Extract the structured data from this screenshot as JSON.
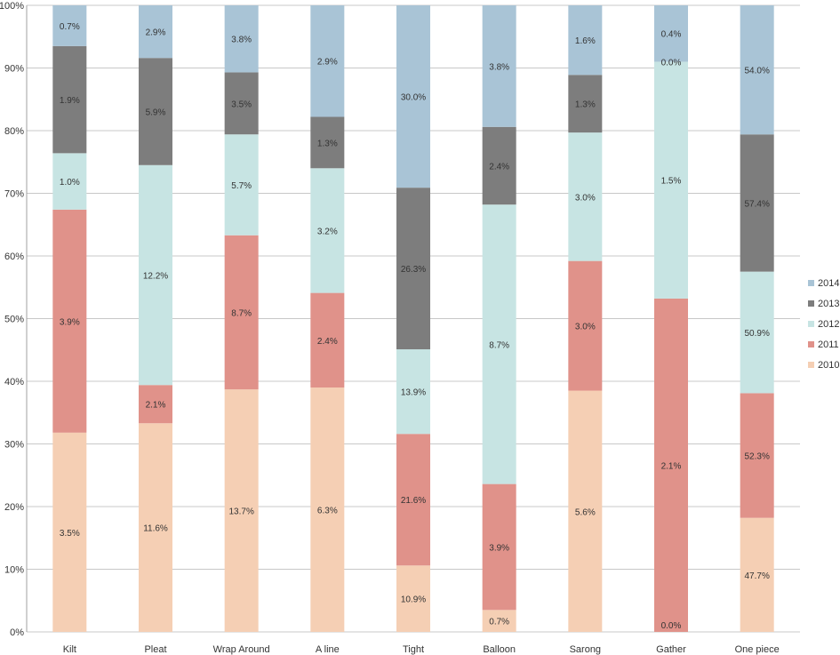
{
  "chart_data": {
    "type": "bar",
    "stacked": true,
    "percent_stacked": true,
    "categories": [
      "Kilt",
      "Pleat",
      "Wrap Around",
      "A line",
      "Tight",
      "Balloon",
      "Sarong",
      "Gather",
      "One piece"
    ],
    "ylim": [
      0,
      100
    ],
    "yticks": [
      "0%",
      "10%",
      "20%",
      "30%",
      "40%",
      "50%",
      "60%",
      "70%",
      "80%",
      "90%",
      "100%"
    ],
    "grid": true,
    "legend_position": "right",
    "series": [
      {
        "name": "2010",
        "color": "#f5cfb4",
        "share": [
          31.8,
          33.3,
          38.7,
          39.0,
          10.6,
          3.5,
          38.5,
          0.0,
          18.2
        ],
        "labels": [
          "3.5%",
          "11.6%",
          "13.7%",
          "6.3%",
          "10.9%",
          "0.7%",
          "5.6%",
          "0.0%",
          "47.7%"
        ]
      },
      {
        "name": "2011",
        "color": "#e0928a",
        "share": [
          35.6,
          6.1,
          24.6,
          15.1,
          21.0,
          20.1,
          20.7,
          53.2,
          19.9
        ],
        "labels": [
          "3.9%",
          "2.1%",
          "8.7%",
          "2.4%",
          "21.6%",
          "3.9%",
          "3.0%",
          "2.1%",
          "52.3%"
        ]
      },
      {
        "name": "2012",
        "color": "#c7e4e3",
        "share": [
          9.0,
          35.1,
          16.1,
          19.9,
          13.5,
          44.6,
          20.5,
          37.8,
          19.4
        ],
        "labels": [
          "1.0%",
          "12.2%",
          "5.7%",
          "3.2%",
          "13.9%",
          "8.7%",
          "3.0%",
          "1.5%",
          "50.9%"
        ]
      },
      {
        "name": "2013",
        "color": "#7d7d7d",
        "share": [
          17.1,
          17.1,
          9.9,
          8.2,
          25.8,
          12.4,
          9.2,
          0.0,
          21.9
        ],
        "labels": [
          "1.9%",
          "5.9%",
          "3.5%",
          "1.3%",
          "26.3%",
          "2.4%",
          "1.3%",
          "0.0%",
          "57.4%"
        ]
      },
      {
        "name": "2014",
        "color": "#a9c4d6",
        "share": [
          6.5,
          8.4,
          10.7,
          17.8,
          29.1,
          19.4,
          11.1,
          9.0,
          20.6
        ],
        "labels": [
          "0.7%",
          "2.9%",
          "3.8%",
          "2.9%",
          "30.0%",
          "3.8%",
          "1.6%",
          "0.4%",
          "54.0%"
        ]
      }
    ]
  }
}
